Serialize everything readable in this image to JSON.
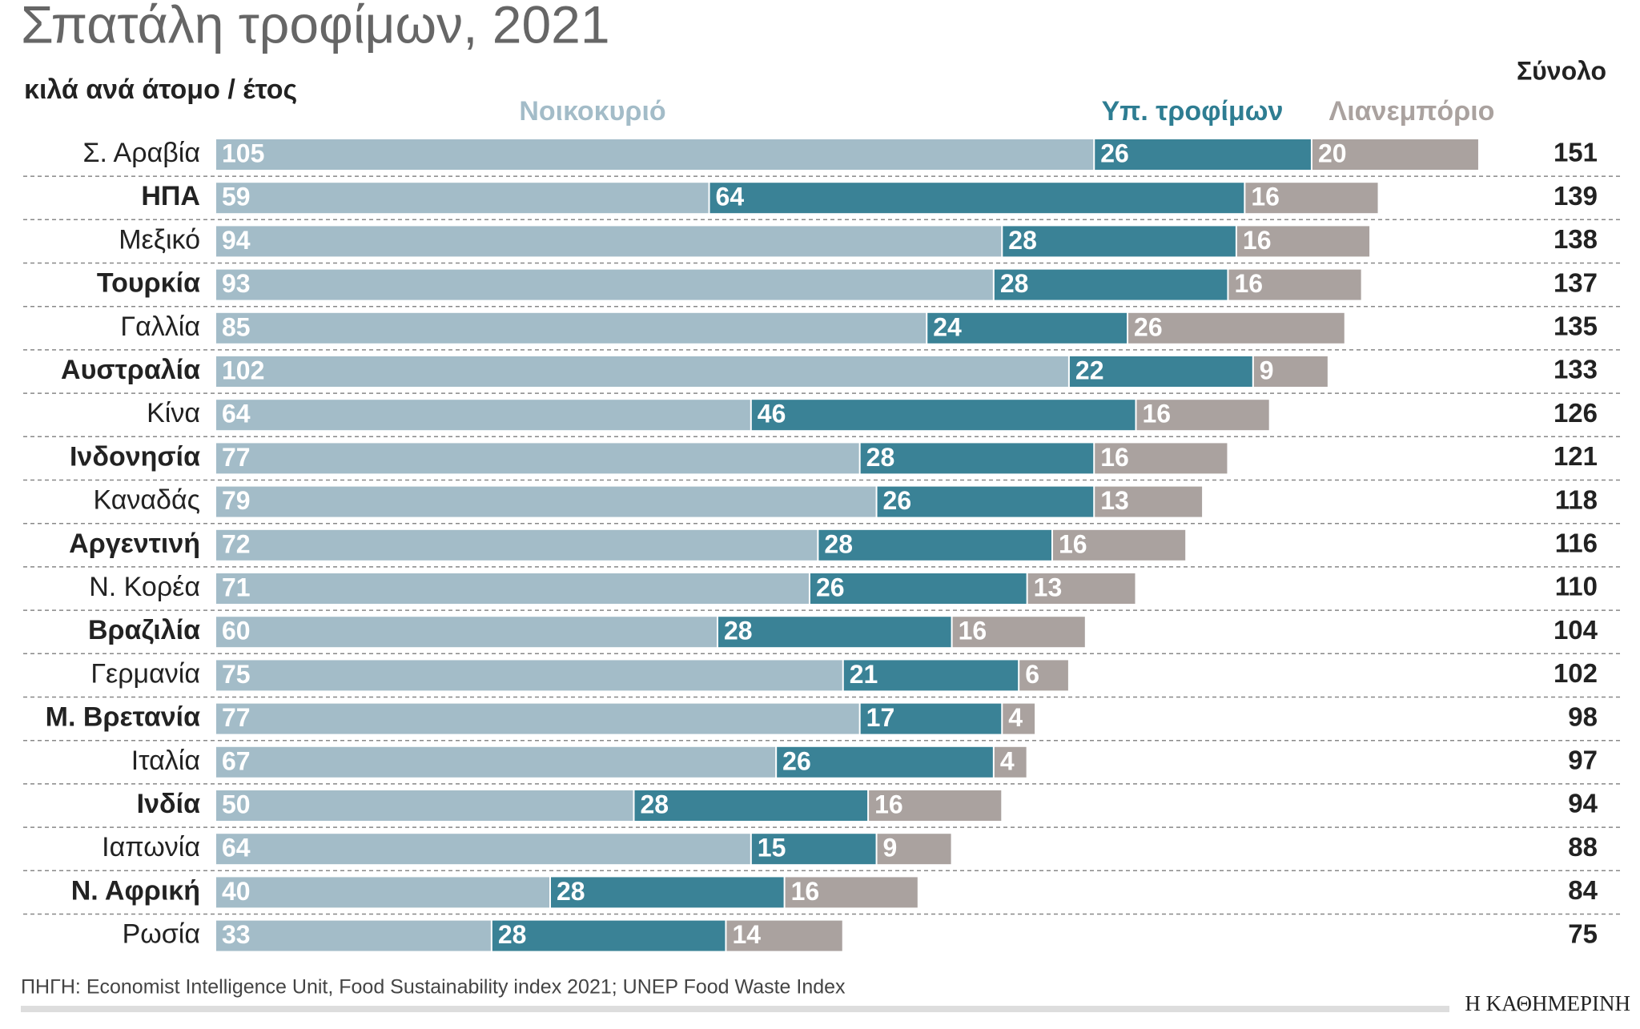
{
  "chart_data": {
    "type": "bar",
    "title": "Σπατάλη τροφίμων, 2021",
    "subtitle": "κιλά ανά άτομο / έτος",
    "categories": [
      "Σ. Αραβία",
      "ΗΠΑ",
      "Μεξικό",
      "Τουρκία",
      "Γαλλία",
      "Αυστραλία",
      "Κίνα",
      "Ινδονησία",
      "Καναδάς",
      "Αργεντινή",
      "Ν. Κορέα",
      "Βραζιλία",
      "Γερμανία",
      "Μ. Βρετανία",
      "Ιταλία",
      "Ινδία",
      "Ιαπωνία",
      "Ν. Αφρική",
      "Ρωσία"
    ],
    "series": [
      {
        "name": "Νοικοκυριό",
        "color": "#a3bcc8",
        "values": [
          105,
          59,
          94,
          93,
          85,
          102,
          64,
          77,
          79,
          72,
          71,
          60,
          75,
          77,
          67,
          50,
          64,
          40,
          33
        ]
      },
      {
        "name": "Υπ. τροφίμων",
        "color": "#3a8296",
        "values": [
          26,
          64,
          28,
          28,
          24,
          22,
          46,
          28,
          26,
          28,
          26,
          28,
          21,
          17,
          26,
          28,
          15,
          28,
          28
        ]
      },
      {
        "name": "Λιανεμπόριο",
        "color": "#aaa29f",
        "values": [
          20,
          16,
          16,
          16,
          26,
          9,
          16,
          16,
          13,
          16,
          13,
          16,
          6,
          4,
          4,
          16,
          9,
          16,
          14
        ]
      }
    ],
    "totals_label": "Σύνολο",
    "totals": [
      151,
      139,
      138,
      137,
      135,
      133,
      126,
      121,
      118,
      116,
      110,
      104,
      102,
      98,
      97,
      94,
      88,
      84,
      75
    ]
  },
  "footer": {
    "source": "ΠΗΓΗ: Economist Intelligence Unit, Food Sustainability index 2021; UNEP Food Waste Index",
    "brand": "Η ΚΑΘΗΜΕΡΙΝΗ"
  }
}
